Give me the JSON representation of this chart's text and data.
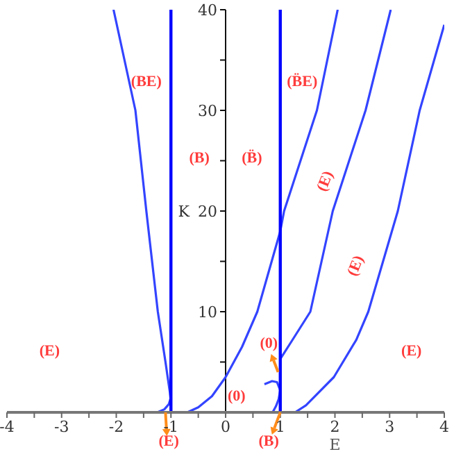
{
  "chart_data": {
    "type": "line",
    "xlabel": "E",
    "ylabel": "K",
    "xlim": [
      -4,
      4
    ],
    "ylim": [
      0,
      40
    ],
    "xticks": [
      -4,
      {
        "value": -3.5,
        "label": null
      },
      -3,
      {
        "value": -2.5,
        "label": null
      },
      -2,
      {
        "value": -1.5,
        "label": null
      },
      -1,
      {
        "value": -0.5,
        "label": null
      },
      0,
      {
        "value": 0.5,
        "label": null
      },
      1,
      {
        "value": 1.5,
        "label": null
      },
      2,
      {
        "value": 2.5,
        "label": null
      },
      3,
      {
        "value": 3.5,
        "label": null
      },
      4
    ],
    "yticks": [
      {
        "value": 5,
        "label": null
      },
      10,
      {
        "value": 15,
        "label": null
      },
      20,
      {
        "value": 25,
        "label": null
      },
      30,
      {
        "value": 35,
        "label": null
      },
      40
    ],
    "series": [
      {
        "color": "#3344ff",
        "x": [
          -2.05,
          -1.85,
          -1.65,
          -1.55,
          -1.45,
          -1.24,
          -1.1,
          -1.02,
          -1.0
        ],
        "values": [
          40,
          35,
          30,
          25,
          20,
          10,
          5,
          2,
          1
        ]
      },
      {
        "color": "#3344ff",
        "x": [
          -1.25,
          -1.12,
          -1.04,
          -1.0
        ],
        "values": [
          0,
          0.3,
          0.8,
          1.5
        ]
      },
      {
        "color": "#3344ff",
        "x": [
          -0.7,
          -0.5,
          -0.25,
          0,
          0.3,
          0.58,
          1.0,
          1.07,
          1.67,
          2.05
        ],
        "values": [
          0,
          0.5,
          1.6,
          3.5,
          6.5,
          10,
          18,
          20,
          30,
          40
        ]
      },
      {
        "color": "#3344ff",
        "x": [
          1.0,
          1.2,
          1.55,
          1.96,
          2.56,
          3.02
        ],
        "values": [
          5.3,
          7,
          10,
          20,
          30,
          40
        ]
      },
      {
        "color": "#3344ff",
        "x": [
          1.27,
          1.47,
          1.98,
          2.39,
          2.61,
          3.15,
          3.55,
          4.0
        ],
        "values": [
          0,
          0.7,
          3.5,
          7.2,
          10,
          20,
          30,
          38.5
        ]
      },
      {
        "color": "#3344ff",
        "x": [
          0.86,
          0.92,
          0.97,
          1.0,
          0.97,
          0.94,
          0.85,
          0.71
        ],
        "values": [
          0,
          0.6,
          1.3,
          2.2,
          2.6,
          3.0,
          3.1,
          2.8
        ]
      }
    ],
    "ref_lines": [
      {
        "axis": "x",
        "value": -1,
        "color": "#0000ff"
      },
      {
        "axis": "x",
        "value": 1,
        "color": "#0000ff"
      }
    ],
    "annotations": [
      "(BE)",
      "(B)",
      "(B̈)",
      "(B̈E)",
      "(E)",
      "(E)",
      "(E)",
      "(E)",
      "(0)",
      "(0)",
      "(E)",
      "(B)"
    ]
  }
}
